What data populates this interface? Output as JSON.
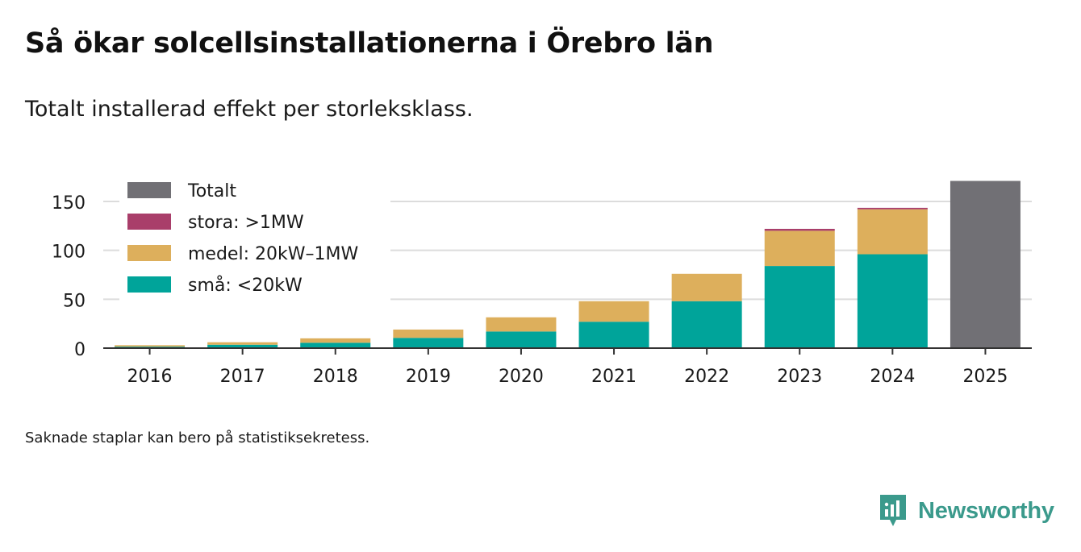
{
  "title": "Så ökar solcellsinstallationerna i Örebro län",
  "subtitle": "Totalt installerad effekt per storleksklass.",
  "note": "Saknade staplar kan bero på statistiksekretess.",
  "brand": {
    "name": "Newsworthy",
    "logo_icon": "newsworthy-logo-icon"
  },
  "chart_data": {
    "type": "bar",
    "stacked": true,
    "categories": [
      "2016",
      "2017",
      "2018",
      "2019",
      "2020",
      "2021",
      "2022",
      "2023",
      "2024",
      "2025"
    ],
    "series": [
      {
        "name": "små: <20kW",
        "color": "#00a49a",
        "values": [
          1.5,
          3.5,
          5.5,
          10.5,
          17,
          27,
          48,
          84,
          96,
          null
        ]
      },
      {
        "name": "medel: 20kW–1MW",
        "color": "#ddaf5c",
        "values": [
          1.5,
          2.5,
          4.5,
          8.5,
          14.5,
          21,
          28,
          36,
          46,
          null
        ]
      },
      {
        "name": "stora: >1MW",
        "color": "#a93e6a",
        "values": [
          0,
          0,
          0,
          0,
          0,
          0,
          0,
          2,
          1.5,
          null
        ]
      },
      {
        "name": "Totalt",
        "color": "#717075",
        "values": [
          null,
          null,
          null,
          null,
          null,
          null,
          null,
          null,
          null,
          171
        ]
      }
    ],
    "legend_order": [
      "Totalt",
      "stora: >1MW",
      "medel: 20kW–1MW",
      "små: <20kW"
    ],
    "legend_position": "top-left",
    "yticks": [
      0,
      50,
      100,
      150
    ],
    "ylim": [
      0,
      171
    ],
    "xlabel": "",
    "ylabel": "",
    "grid": true
  }
}
